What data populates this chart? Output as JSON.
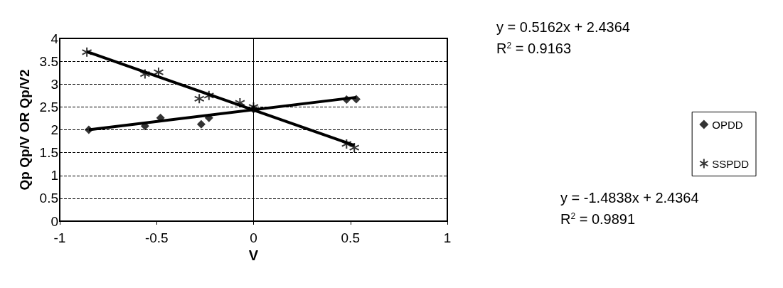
{
  "chart_data": {
    "type": "scatter",
    "xlabel": "V",
    "ylabel": "Qp Qp/V OR Qp/V2",
    "xlim": [
      -1,
      1
    ],
    "xticks": [
      -1,
      -0.5,
      0,
      0.5,
      1
    ],
    "ylim": [
      0,
      4
    ],
    "yticks": [
      0,
      0.5,
      1,
      1.5,
      2,
      2.5,
      3,
      3.5,
      4
    ],
    "grid": "y",
    "legend": "right",
    "series": [
      {
        "name": "OPDD",
        "color": "#000000",
        "marker": "diamond",
        "x": [
          -0.85,
          -0.56,
          -0.48,
          -0.27,
          -0.23,
          0,
          0.48,
          0.53
        ],
        "values": [
          2.0,
          2.08,
          2.26,
          2.12,
          2.26,
          2.45,
          2.66,
          2.67
        ]
      },
      {
        "name": "SSPDD",
        "color": "#000000",
        "marker": "cross",
        "x": [
          -0.86,
          -0.56,
          -0.49,
          -0.28,
          -0.23,
          -0.07,
          0,
          0.48,
          0.52
        ],
        "values": [
          3.7,
          3.22,
          3.26,
          2.68,
          2.75,
          2.59,
          2.5,
          1.69,
          1.61
        ]
      },
      {
        "type": "line",
        "color": "#000000",
        "marker": "none",
        "x": [
          -0.85,
          0.53
        ],
        "values": [
          2.0,
          2.71
        ]
      },
      {
        "type": "line",
        "color": "#000000",
        "marker": "none",
        "x": [
          -0.86,
          0.52
        ],
        "values": [
          3.71,
          1.66
        ]
      }
    ],
    "annotations": [
      "y = 0.5162x + 2.4364",
      "R$^{2}$ = 0.9163",
      "y = -1.4838x + 2.4364",
      "R$^{2}$ = 0.9891"
    ]
  }
}
